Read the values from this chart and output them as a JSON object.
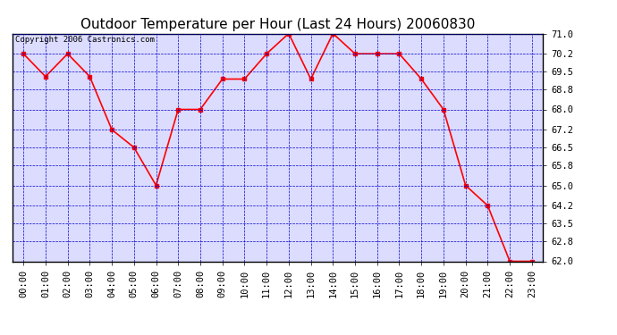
{
  "title": "Outdoor Temperature per Hour (Last 24 Hours) 20060830",
  "copyright_text": "Copyright 2006 Castronics.com",
  "hours": [
    "00:00",
    "01:00",
    "02:00",
    "03:00",
    "04:00",
    "05:00",
    "06:00",
    "07:00",
    "08:00",
    "09:00",
    "10:00",
    "11:00",
    "12:00",
    "13:00",
    "14:00",
    "15:00",
    "16:00",
    "17:00",
    "18:00",
    "19:00",
    "20:00",
    "21:00",
    "22:00",
    "23:00"
  ],
  "temps": [
    70.2,
    69.3,
    70.2,
    69.3,
    67.2,
    66.5,
    65.0,
    68.0,
    68.0,
    69.2,
    69.2,
    70.2,
    71.0,
    69.2,
    71.0,
    70.2,
    70.2,
    70.2,
    69.2,
    68.0,
    65.0,
    64.2,
    62.0,
    62.0
  ],
  "ylim_min": 62.0,
  "ylim_max": 71.0,
  "yticks": [
    62.0,
    62.8,
    63.5,
    64.2,
    65.0,
    65.8,
    66.5,
    67.2,
    68.0,
    68.8,
    69.5,
    70.2,
    71.0
  ],
  "line_color": "red",
  "marker": "s",
  "marker_size": 3,
  "bg_color": "#ffffff",
  "plot_bg_color": "#dcdcff",
  "grid_color": "#0000cc",
  "title_fontsize": 11,
  "tick_fontsize": 7.5,
  "copyright_fontsize": 6.5
}
